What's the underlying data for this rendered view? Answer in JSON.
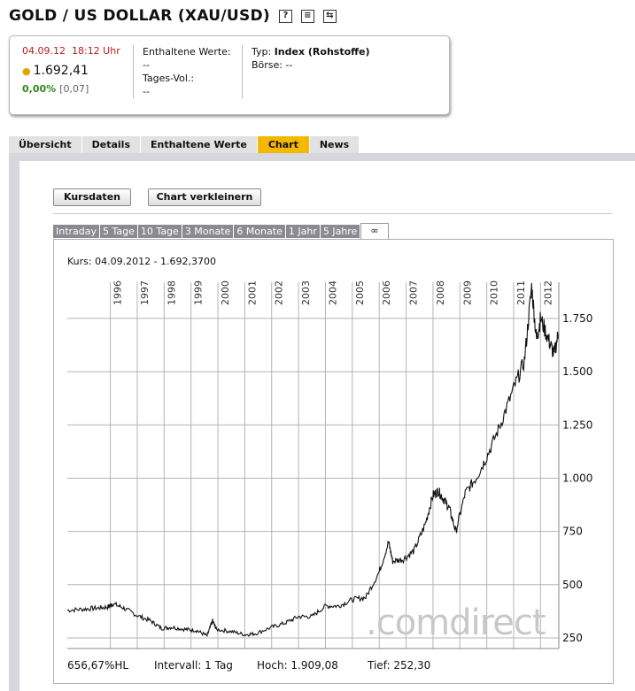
{
  "header": {
    "title": "GOLD / US DOLLAR (XAU/USD)",
    "icons": [
      "help-icon",
      "print-icon",
      "refresh-icon"
    ]
  },
  "infobox": {
    "date": "04.09.12",
    "time": "18:12 Uhr",
    "price": "1.692,41",
    "change_pct": "0,00%",
    "change_abs": "[0,07]",
    "enthaltene_label": "Enthaltene Werte:",
    "enthaltene_value": "--",
    "tagesvol_label": "Tages-Vol.:",
    "tagesvol_value": "--",
    "typ_label": "Typ:",
    "typ_value": "Index (Rohstoffe)",
    "boerse_label": "Börse:",
    "boerse_value": "--"
  },
  "tabs": [
    "Übersicht",
    "Details",
    "Enthaltene Werte",
    "Chart",
    "News"
  ],
  "active_tab": "Chart",
  "buttons": {
    "kursdaten": "Kursdaten",
    "chart_verkleinern": "Chart verkleinern"
  },
  "period_tabs": [
    "Intraday",
    "5 Tage",
    "10 Tage",
    "3 Monate",
    "6 Monate",
    "1 Jahr",
    "5 Jahre",
    "∞"
  ],
  "active_period": "∞",
  "chart_info": {
    "kurs": "Kurs: 04.09.2012 - 1.692,3700",
    "hl": "656,67%HL",
    "intervall": "Intervall: 1 Tag",
    "hoch": "Hoch: 1.909,08",
    "tief": "Tief: 252,30",
    "watermark": ".comdirect"
  },
  "colors": {
    "accent_tab": "#f5b800",
    "date_red": "#b52020",
    "change_green": "#2e8a1e"
  },
  "chart_data": {
    "type": "line",
    "title": "",
    "x_tick_labels": [
      "1996",
      "1997",
      "1998",
      "1999",
      "2000",
      "2001",
      "2002",
      "2003",
      "2004",
      "2005",
      "2006",
      "2007",
      "2008",
      "2009",
      "2010",
      "2011",
      "2012"
    ],
    "y_tick_values": [
      250,
      500,
      750,
      1000,
      1250,
      1500,
      1750
    ],
    "y_tick_labels": [
      "250",
      "500",
      "750",
      "1.000",
      "1.250",
      "1.500",
      "1.750"
    ],
    "ylim": [
      200,
      1920
    ],
    "xlim": [
      1994.4,
      2012.68
    ],
    "grid": true,
    "series": [
      {
        "x": [
          1994.4,
          1995.0,
          1995.5,
          1995.9,
          1996.1,
          1996.5,
          1997.0,
          1997.5,
          1997.9,
          1998.3,
          1998.8,
          1999.2,
          1999.6,
          1999.8,
          1999.95,
          2000.5,
          2001.0,
          2001.4,
          2002.0,
          2002.5,
          2003.0,
          2003.5,
          2004.0,
          2004.5,
          2005.0,
          2005.5,
          2006.0,
          2006.35,
          2006.5,
          2006.9,
          2007.3,
          2007.7,
          2008.0,
          2008.2,
          2008.4,
          2008.6,
          2008.85,
          2009.2,
          2009.6,
          2010.0,
          2010.5,
          2011.0,
          2011.4,
          2011.67,
          2011.85,
          2012.0,
          2012.3,
          2012.5,
          2012.68
        ],
        "y": [
          380,
          385,
          390,
          395,
          410,
          390,
          355,
          330,
          295,
          300,
          290,
          285,
          260,
          330,
          290,
          280,
          265,
          270,
          300,
          320,
          350,
          350,
          400,
          400,
          430,
          440,
          560,
          700,
          610,
          620,
          660,
          780,
          920,
          940,
          900,
          860,
          750,
          930,
          1000,
          1100,
          1250,
          1420,
          1550,
          1900,
          1650,
          1750,
          1650,
          1580,
          1690
        ]
      }
    ]
  }
}
